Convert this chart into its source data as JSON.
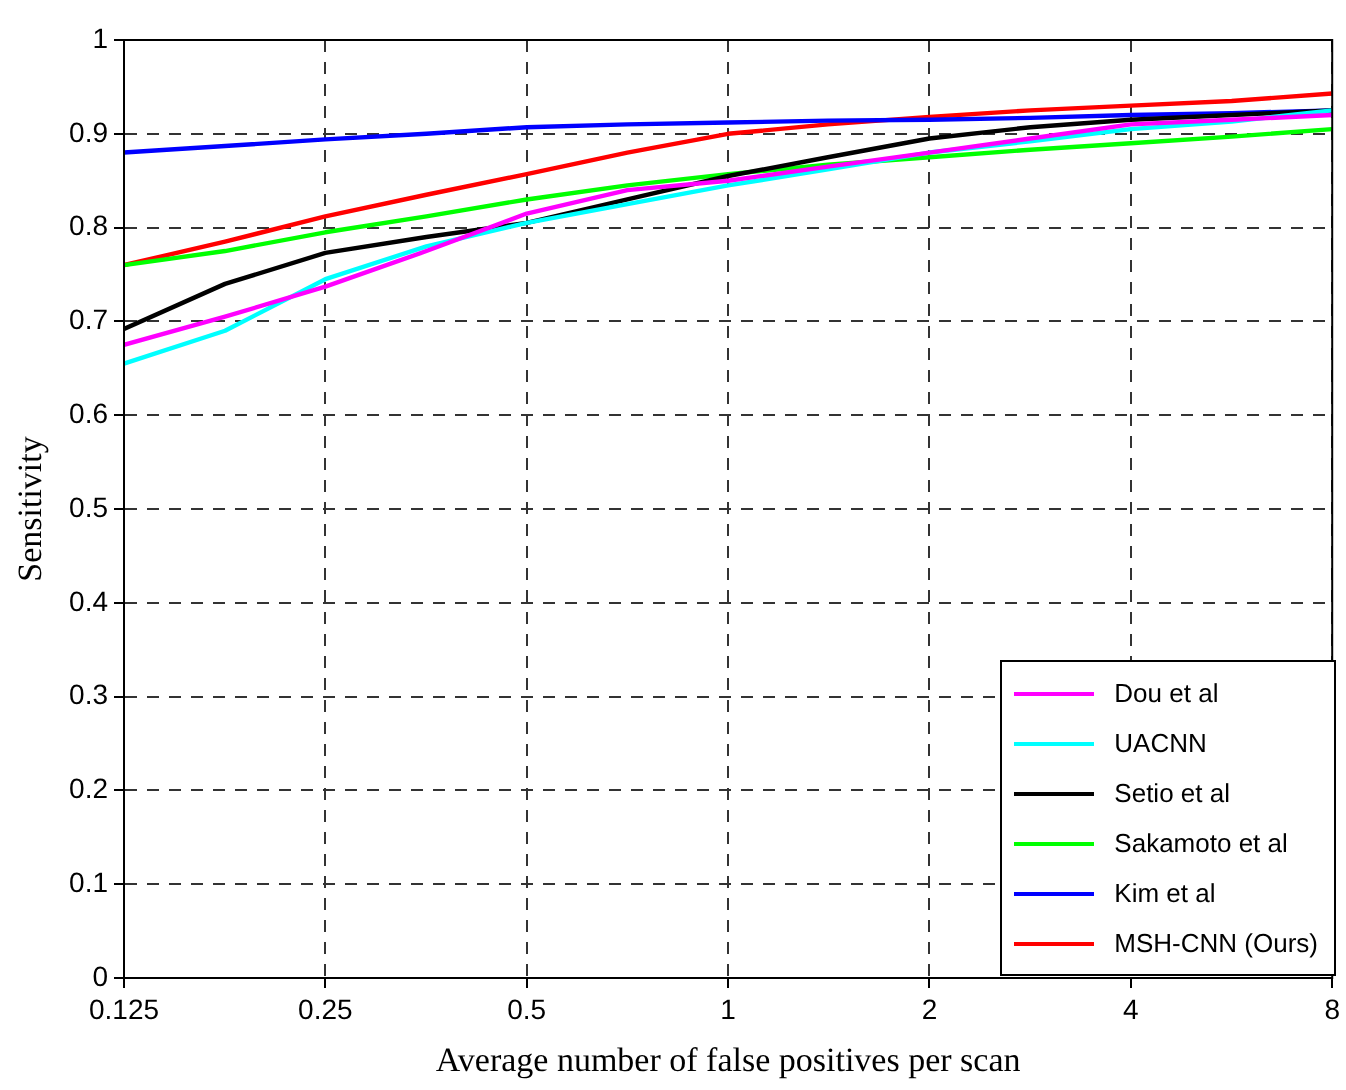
{
  "chart_data": {
    "type": "line",
    "xlabel": "Average number of false positives per scan",
    "ylabel": "Sensitivity",
    "x": [
      0.125,
      0.177,
      0.25,
      0.354,
      0.5,
      0.707,
      1,
      1.41,
      2,
      2.83,
      4,
      5.66,
      8
    ],
    "log": "x",
    "xlim": [
      0.125,
      8
    ],
    "xticks": [
      0.125,
      0.25,
      0.5,
      1,
      2,
      4,
      8
    ],
    "ylim": [
      0,
      1
    ],
    "yticks": [
      0,
      0.1,
      0.2,
      0.3,
      0.4,
      0.5,
      0.6,
      0.7,
      0.8,
      0.9,
      1
    ],
    "grid": true,
    "legend": "bottom right",
    "marker": "none",
    "line_style": "solid",
    "series": [
      {
        "name": "Dou et al",
        "color": "#ff00ff",
        "values": [
          0.675,
          0.705,
          0.737,
          0.775,
          0.815,
          0.84,
          0.85,
          0.865,
          0.88,
          0.895,
          0.91,
          0.915,
          0.92
        ]
      },
      {
        "name": "UACNN",
        "color": "#00ffff",
        "values": [
          0.655,
          0.69,
          0.745,
          0.78,
          0.805,
          0.825,
          0.845,
          0.862,
          0.88,
          0.892,
          0.905,
          0.913,
          0.925
        ]
      },
      {
        "name": "Setio et al",
        "color": "#000000",
        "values": [
          0.692,
          0.74,
          0.773,
          0.79,
          0.805,
          0.83,
          0.855,
          0.875,
          0.895,
          0.907,
          0.915,
          0.92,
          0.925
        ]
      },
      {
        "name": "Sakamoto et al",
        "color": "#00ff00",
        "values": [
          0.76,
          0.775,
          0.795,
          0.812,
          0.83,
          0.845,
          0.857,
          0.867,
          0.875,
          0.883,
          0.89,
          0.897,
          0.905
        ]
      },
      {
        "name": "Kim et al",
        "color": "#0000ff",
        "values": [
          0.88,
          0.887,
          0.894,
          0.9,
          0.907,
          0.91,
          0.912,
          0.914,
          0.915,
          0.917,
          0.92,
          0.922,
          0.925
        ]
      },
      {
        "name": "MSH-CNN (Ours)",
        "color": "#ff0000",
        "values": [
          0.76,
          0.785,
          0.812,
          0.835,
          0.857,
          0.88,
          0.9,
          0.91,
          0.918,
          0.925,
          0.93,
          0.935,
          0.943
        ]
      }
    ]
  }
}
